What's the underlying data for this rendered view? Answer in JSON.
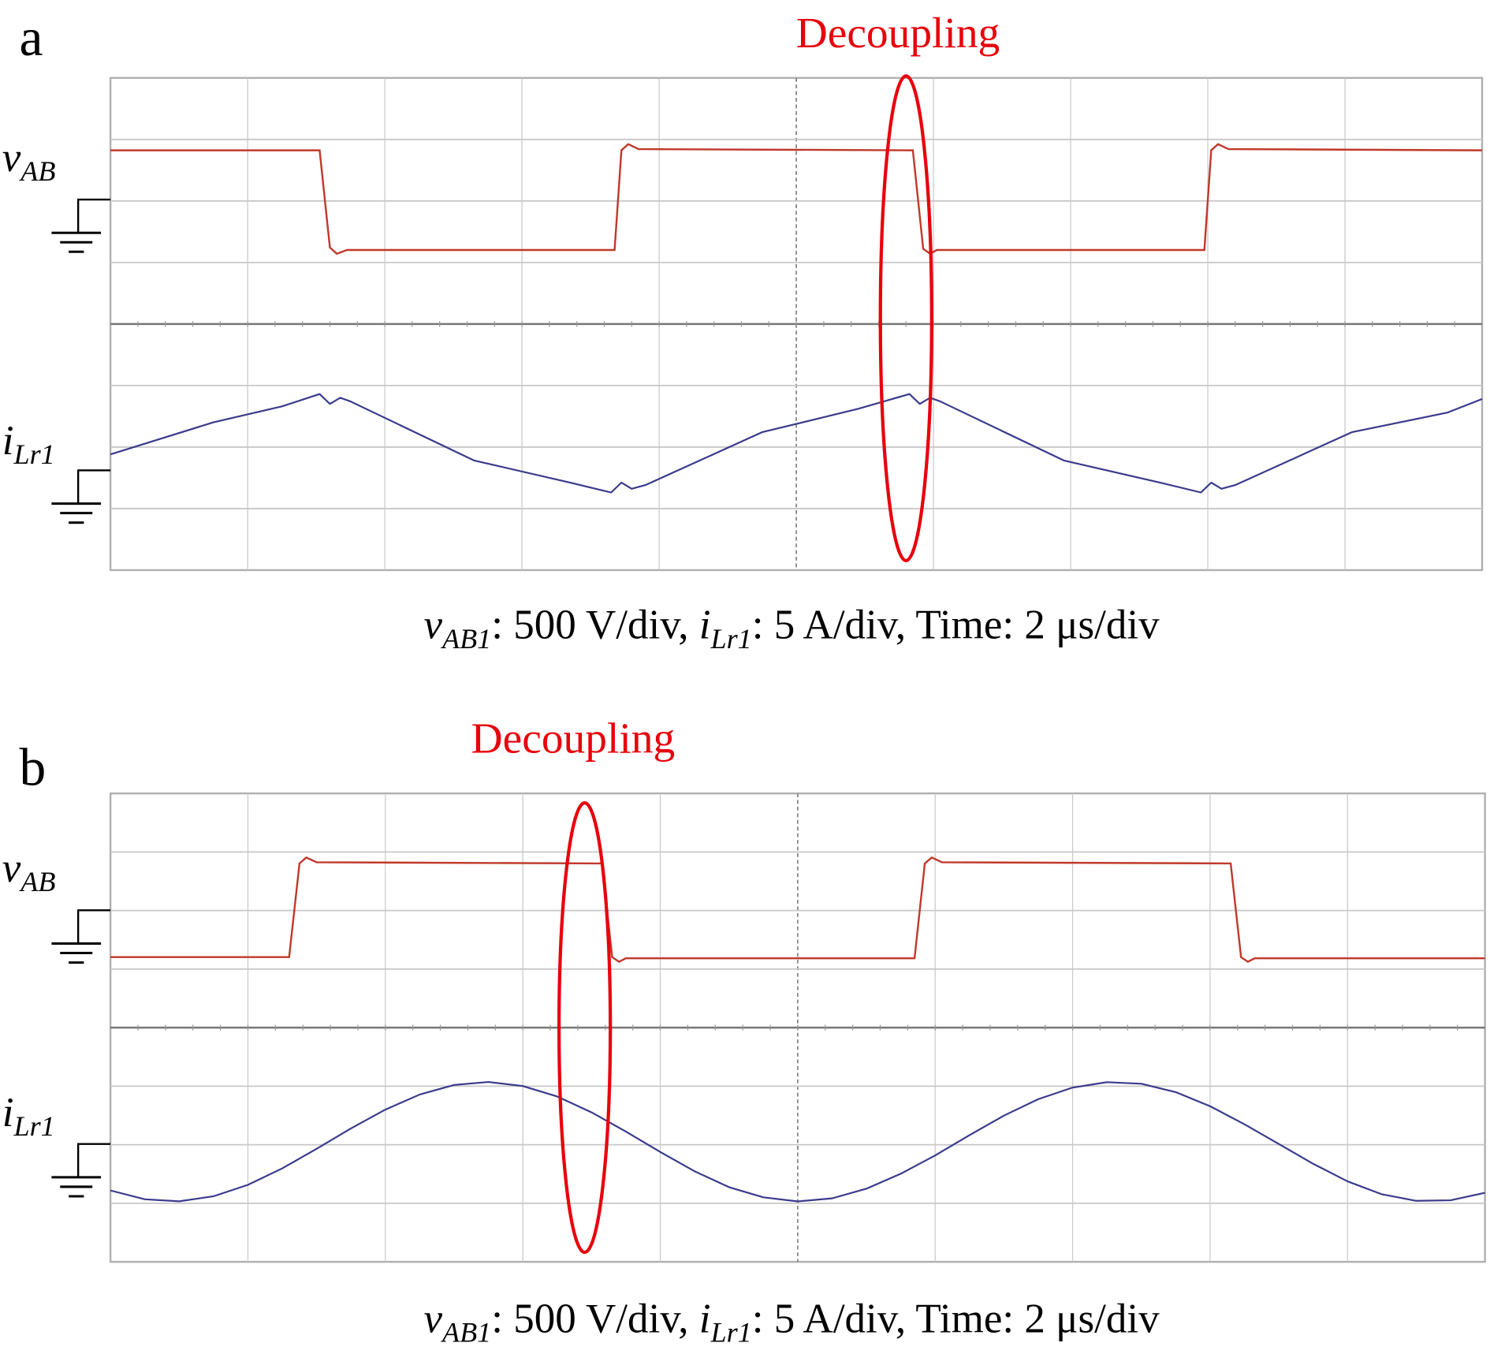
{
  "chart_data": [
    {
      "type": "line",
      "panel_label": "a",
      "annotation": "Decoupling",
      "annotation_time_us": 11.6,
      "caption": {
        "v": "v",
        "v_sub": "AB1",
        "v_scale": ": 500 V/div, ",
        "i": "i",
        "i_sub": "Lr1",
        "i_scale": ": 5 A/div, Time: 2 μs/div"
      },
      "time_per_div_us": 2,
      "volts_per_div": 500,
      "amps_per_div": 5,
      "xlim_us": [
        0,
        20
      ],
      "divisions": {
        "x": 10,
        "y": 8
      },
      "grid": true,
      "colors": {
        "voltage": "#c0392b",
        "current": "#3a3a8c",
        "annotation": "#e8000b",
        "grid": "#c8c8c8"
      },
      "series": [
        {
          "name": "v",
          "name_sub": "AB",
          "unit": "V",
          "points": [
            [
              0,
              400
            ],
            [
              3.05,
              400
            ],
            [
              3.2,
              -390
            ],
            [
              3.3,
              -440
            ],
            [
              3.45,
              -410
            ],
            [
              7.35,
              -410
            ],
            [
              7.45,
              400
            ],
            [
              7.55,
              450
            ],
            [
              7.7,
              410
            ],
            [
              11.7,
              400
            ],
            [
              11.85,
              -400
            ],
            [
              11.95,
              -440
            ],
            [
              12.05,
              -410
            ],
            [
              15.95,
              -410
            ],
            [
              16.05,
              400
            ],
            [
              16.15,
              450
            ],
            [
              16.3,
              410
            ],
            [
              20,
              400
            ]
          ]
        },
        {
          "name": "i",
          "name_sub": "Lr1",
          "unit": "A",
          "points": [
            [
              0,
              1.3
            ],
            [
              1.5,
              3.9
            ],
            [
              2.5,
              5.2
            ],
            [
              3.05,
              6.2
            ],
            [
              3.2,
              5.4
            ],
            [
              3.35,
              5.9
            ],
            [
              3.5,
              5.6
            ],
            [
              5.3,
              0.8
            ],
            [
              6.7,
              -1.0
            ],
            [
              7.3,
              -1.8
            ],
            [
              7.45,
              -1.0
            ],
            [
              7.6,
              -1.5
            ],
            [
              7.8,
              -1.2
            ],
            [
              9.5,
              3.1
            ],
            [
              10.9,
              5.0
            ],
            [
              11.65,
              6.2
            ],
            [
              11.8,
              5.4
            ],
            [
              11.95,
              5.9
            ],
            [
              12.1,
              5.6
            ],
            [
              13.9,
              0.8
            ],
            [
              15.3,
              -1.0
            ],
            [
              15.9,
              -1.8
            ],
            [
              16.05,
              -1.0
            ],
            [
              16.2,
              -1.5
            ],
            [
              16.4,
              -1.2
            ],
            [
              18.1,
              3.1
            ],
            [
              19.5,
              4.7
            ],
            [
              20,
              5.8
            ]
          ]
        }
      ]
    },
    {
      "type": "line",
      "panel_label": "b",
      "annotation": "Decoupling",
      "annotation_time_us": 6.9,
      "caption": {
        "v": "v",
        "v_sub": "AB1",
        "v_scale": ": 500 V/div, ",
        "i": "i",
        "i_sub": "Lr1",
        "i_scale": ": 5 A/div, Time: 2 μs/div"
      },
      "time_per_div_us": 2,
      "volts_per_div": 500,
      "amps_per_div": 5,
      "xlim_us": [
        0,
        20
      ],
      "divisions": {
        "x": 10,
        "y": 8
      },
      "grid": true,
      "colors": {
        "voltage": "#c0392b",
        "current": "#3a3a8c",
        "annotation": "#e8000b",
        "grid": "#c8c8c8"
      },
      "series": [
        {
          "name": "v",
          "name_sub": "AB",
          "unit": "V",
          "points": [
            [
              0,
              -400
            ],
            [
              2.6,
              -400
            ],
            [
              2.75,
              400
            ],
            [
              2.85,
              450
            ],
            [
              3.0,
              410
            ],
            [
              7.15,
              400
            ],
            [
              7.3,
              -400
            ],
            [
              7.4,
              -440
            ],
            [
              7.5,
              -410
            ],
            [
              11.7,
              -410
            ],
            [
              11.85,
              400
            ],
            [
              11.95,
              450
            ],
            [
              12.1,
              410
            ],
            [
              16.3,
              400
            ],
            [
              16.45,
              -400
            ],
            [
              16.55,
              -440
            ],
            [
              16.65,
              -410
            ],
            [
              20,
              -410
            ]
          ]
        },
        {
          "name": "i",
          "name_sub": "Lr1",
          "unit": "A",
          "points": [
            [
              0,
              -3.97
            ],
            [
              0.5,
              -4.72
            ],
            [
              1.0,
              -4.89
            ],
            [
              1.5,
              -4.46
            ],
            [
              2.0,
              -3.49
            ],
            [
              2.5,
              -2.08
            ],
            [
              3.0,
              -0.41
            ],
            [
              3.5,
              1.33
            ],
            [
              4.0,
              2.94
            ],
            [
              4.5,
              4.23
            ],
            [
              5.0,
              5.05
            ],
            [
              5.5,
              5.3
            ],
            [
              6.0,
              4.95
            ],
            [
              6.5,
              4.06
            ],
            [
              7.0,
              2.7
            ],
            [
              7.5,
              1.06
            ],
            [
              8.0,
              -0.68
            ],
            [
              8.5,
              -2.33
            ],
            [
              9.0,
              -3.68
            ],
            [
              9.5,
              -4.55
            ],
            [
              10.0,
              -4.9
            ],
            [
              10.5,
              -4.64
            ],
            [
              11.0,
              -3.81
            ],
            [
              11.5,
              -2.54
            ],
            [
              12.0,
              -0.97
            ],
            [
              12.5,
              0.76
            ],
            [
              13.0,
              2.43
            ],
            [
              13.5,
              3.83
            ],
            [
              14.0,
              4.82
            ],
            [
              14.5,
              5.28
            ],
            [
              15.0,
              5.14
            ],
            [
              15.5,
              4.43
            ],
            [
              16.0,
              3.23
            ],
            [
              16.5,
              1.69
            ],
            [
              17.0,
              0.0
            ],
            [
              17.5,
              -1.69
            ],
            [
              18.0,
              -3.19
            ],
            [
              18.5,
              -4.29
            ],
            [
              19.0,
              -4.85
            ],
            [
              19.5,
              -4.8
            ],
            [
              20.0,
              -4.16
            ]
          ]
        }
      ]
    }
  ]
}
